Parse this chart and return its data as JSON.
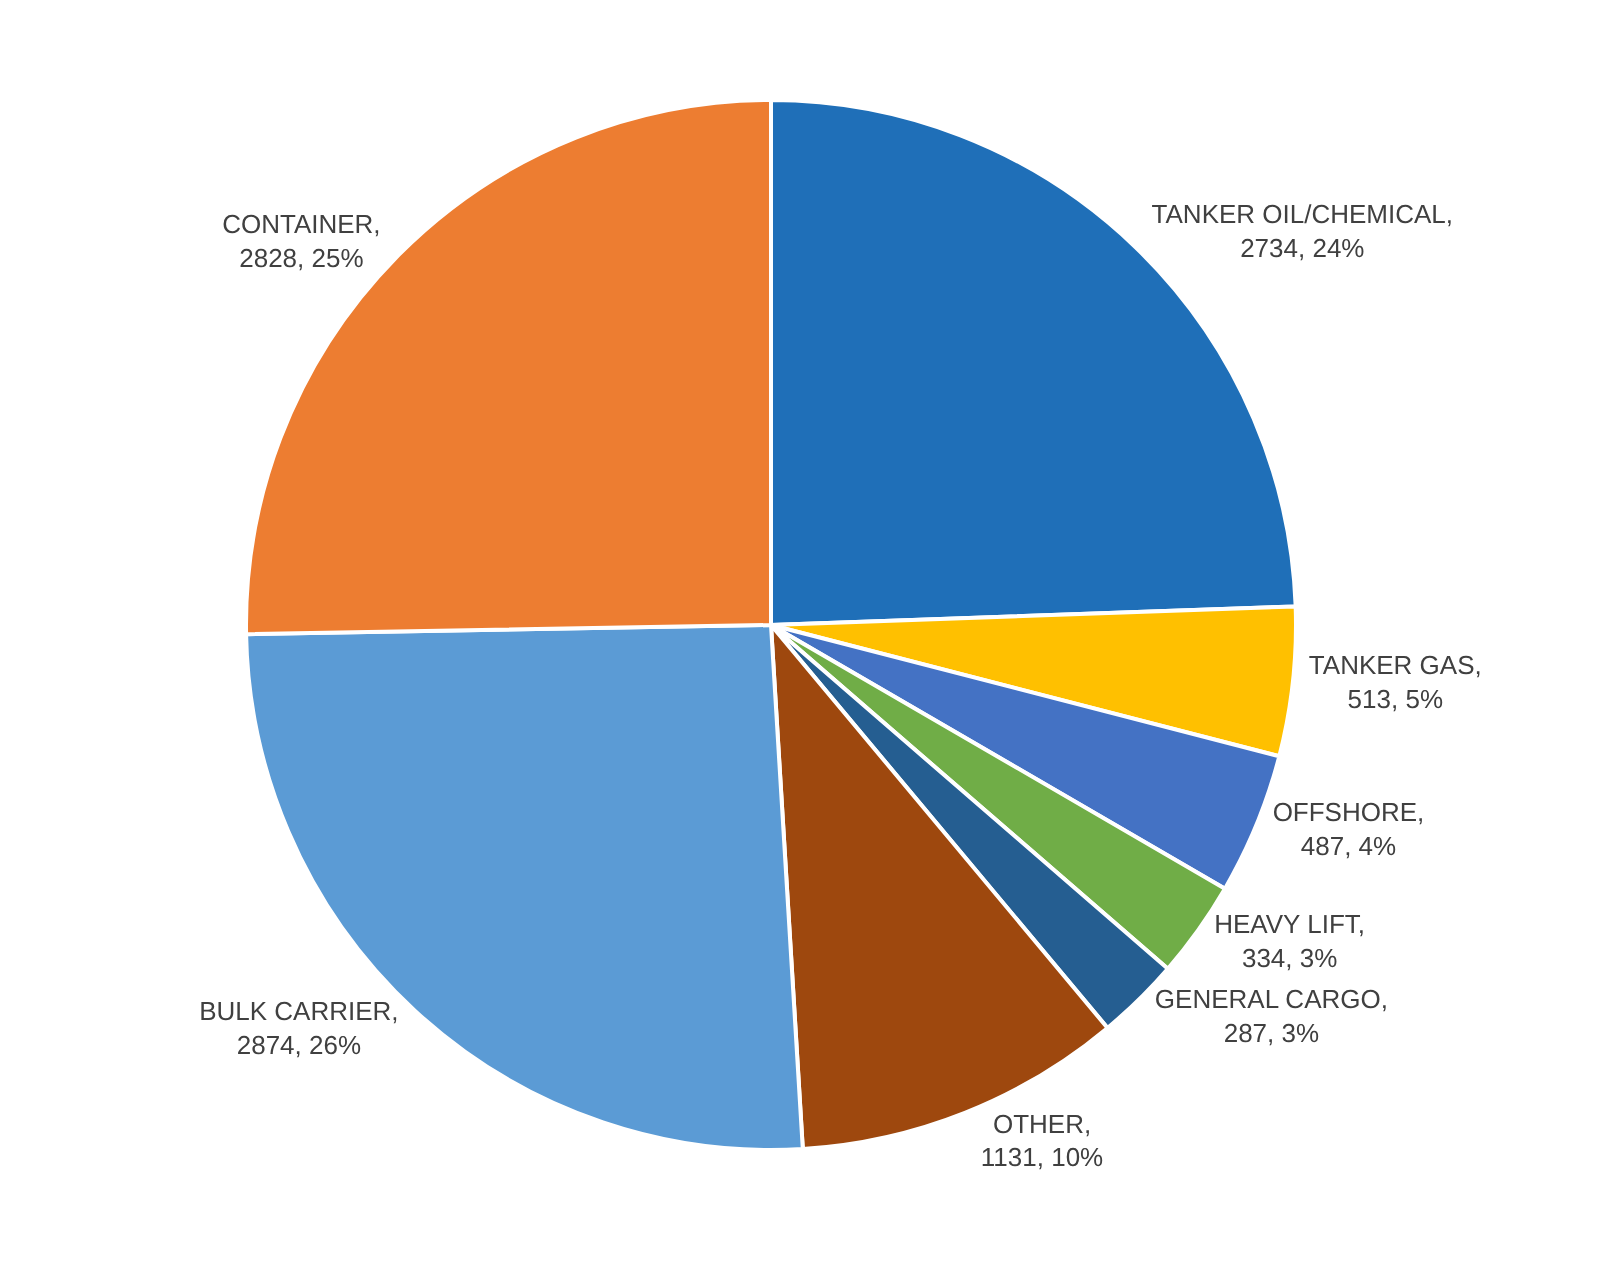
{
  "chart_data": {
    "type": "pie",
    "categories": [
      "TANKER OIL/CHEMICAL",
      "TANKER GAS",
      "OFFSHORE",
      "HEAVY LIFT",
      "GENERAL CARGO",
      "OTHER",
      "BULK CARRIER",
      "CONTAINER"
    ],
    "values": [
      2734,
      513,
      487,
      334,
      287,
      1131,
      2874,
      2828
    ],
    "value_labels": [
      ", 2734, 24%",
      ", 513, 5%",
      ", 487, 4%",
      ", 334, 3%",
      ", 287, 3%",
      ", 1131, 10%",
      ", 2874, 26%",
      ", 2828, 25%"
    ],
    "colors": [
      "#1f6fb8",
      "#ffc000",
      "#4472c4",
      "#70ad47",
      "#255e91",
      "#9e480e",
      "#5b9bd5",
      "#ed7d31"
    ],
    "legend": false
  }
}
